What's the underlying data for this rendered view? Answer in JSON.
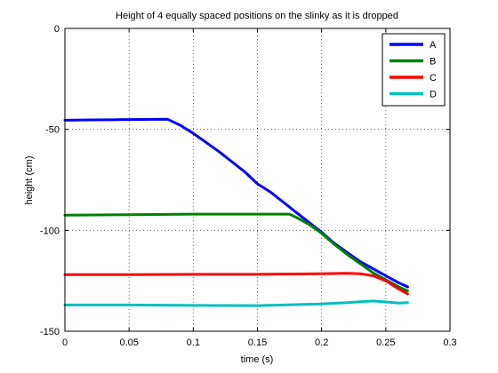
{
  "chart_data": {
    "type": "line",
    "title": "Height of 4 equally spaced positions on the slinky as it is dropped",
    "xlabel": "time (s)",
    "ylabel": "height (cm)",
    "xlim": [
      0,
      0.3
    ],
    "ylim": [
      -150,
      0
    ],
    "xticks": [
      0,
      0.05,
      0.1,
      0.15,
      0.2,
      0.25,
      0.3
    ],
    "xtick_labels": [
      "0",
      "0.05",
      "0.1",
      "0.15",
      "0.2",
      "0.25",
      "0.3"
    ],
    "yticks": [
      0,
      -50,
      -100,
      -150
    ],
    "ytick_labels": [
      "0",
      "-50",
      "-100",
      "-150"
    ],
    "grid": true,
    "legend_position": "top-right",
    "series": [
      {
        "name": "A",
        "color": "#0000ff",
        "points": [
          [
            0,
            -45.5
          ],
          [
            0.02,
            -45.3
          ],
          [
            0.04,
            -45.2
          ],
          [
            0.06,
            -45.1
          ],
          [
            0.08,
            -45.0
          ],
          [
            0.09,
            -48.0
          ],
          [
            0.1,
            -52.0
          ],
          [
            0.11,
            -56.5
          ],
          [
            0.12,
            -61.0
          ],
          [
            0.13,
            -66.0
          ],
          [
            0.14,
            -71.0
          ],
          [
            0.15,
            -77.0
          ],
          [
            0.16,
            -81.0
          ],
          [
            0.17,
            -86.0
          ],
          [
            0.18,
            -91.0
          ],
          [
            0.19,
            -96.0
          ],
          [
            0.2,
            -101.0
          ],
          [
            0.21,
            -106.5
          ],
          [
            0.22,
            -111.0
          ],
          [
            0.23,
            -115.5
          ],
          [
            0.24,
            -119.0
          ],
          [
            0.25,
            -122.5
          ],
          [
            0.26,
            -126.0
          ],
          [
            0.267,
            -128.0
          ]
        ]
      },
      {
        "name": "B",
        "color": "#008000",
        "points": [
          [
            0,
            -92.5
          ],
          [
            0.05,
            -92.3
          ],
          [
            0.1,
            -92.0
          ],
          [
            0.15,
            -92.0
          ],
          [
            0.175,
            -92.0
          ],
          [
            0.18,
            -93.5
          ],
          [
            0.19,
            -97.0
          ],
          [
            0.2,
            -101.5
          ],
          [
            0.21,
            -107.0
          ],
          [
            0.22,
            -112.0
          ],
          [
            0.23,
            -116.5
          ],
          [
            0.24,
            -121.0
          ],
          [
            0.25,
            -124.5
          ],
          [
            0.26,
            -128.0
          ],
          [
            0.267,
            -130.0
          ]
        ]
      },
      {
        "name": "C",
        "color": "#ff0000",
        "points": [
          [
            0,
            -122.0
          ],
          [
            0.05,
            -122.0
          ],
          [
            0.1,
            -121.8
          ],
          [
            0.15,
            -121.8
          ],
          [
            0.2,
            -121.5
          ],
          [
            0.22,
            -121.3
          ],
          [
            0.23,
            -121.5
          ],
          [
            0.24,
            -122.5
          ],
          [
            0.25,
            -125.0
          ],
          [
            0.26,
            -129.0
          ],
          [
            0.267,
            -131.5
          ]
        ]
      },
      {
        "name": "D",
        "color": "#00bfbf",
        "points": [
          [
            0,
            -137.0
          ],
          [
            0.05,
            -137.0
          ],
          [
            0.1,
            -137.2
          ],
          [
            0.15,
            -137.3
          ],
          [
            0.2,
            -136.5
          ],
          [
            0.22,
            -135.8
          ],
          [
            0.24,
            -135.0
          ],
          [
            0.25,
            -135.5
          ],
          [
            0.26,
            -136.0
          ],
          [
            0.267,
            -135.8
          ]
        ]
      }
    ]
  }
}
